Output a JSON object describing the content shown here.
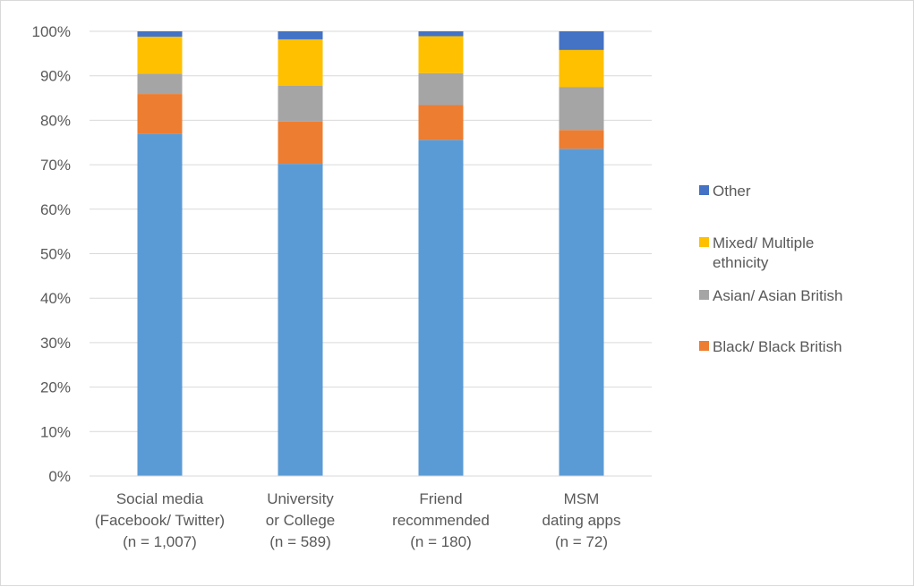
{
  "chart_data": {
    "type": "bar",
    "stacked": true,
    "percent": true,
    "title": "",
    "xlabel": "",
    "ylabel": "",
    "ylim": [
      0,
      100
    ],
    "y_ticks": [
      "0%",
      "10%",
      "20%",
      "30%",
      "40%",
      "50%",
      "60%",
      "70%",
      "80%",
      "90%",
      "100%"
    ],
    "grid": true,
    "legend_position": "right",
    "categories": [
      [
        "Social media",
        "(Facebook/ Twitter)",
        "(n = 1,007)"
      ],
      [
        "University",
        "or College",
        "(n = 589)"
      ],
      [
        "Friend",
        "recommended",
        "(n = 180)"
      ],
      [
        "MSM",
        "dating apps",
        "(n = 72)"
      ]
    ],
    "series": [
      {
        "key": "white",
        "values": [
          77.0,
          70.2,
          75.6,
          73.6
        ],
        "color": "#5b9bd5"
      },
      {
        "key": "black",
        "name": [
          "Black/ Black British"
        ],
        "values": [
          8.9,
          9.5,
          7.8,
          4.2
        ],
        "color": "#ed7d31"
      },
      {
        "key": "asian",
        "name": [
          "Asian/ Asian British"
        ],
        "values": [
          4.6,
          8.1,
          7.2,
          9.7
        ],
        "color": "#a5a5a5"
      },
      {
        "key": "mixed",
        "name": [
          "Mixed/ Multiple",
          "ethnicity"
        ],
        "values": [
          8.3,
          10.4,
          8.3,
          8.3
        ],
        "color": "#ffc000"
      },
      {
        "key": "other",
        "name": [
          "Other"
        ],
        "values": [
          1.2,
          1.8,
          1.1,
          4.2
        ],
        "color": "#4472c4"
      }
    ],
    "legend_order": [
      "other",
      "mixed",
      "asian",
      "black"
    ]
  }
}
